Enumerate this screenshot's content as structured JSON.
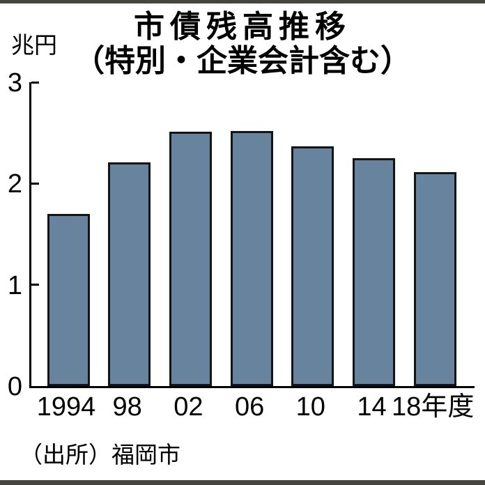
{
  "page": {
    "background_color": "#ffffff",
    "edge_bar_color": "#47453f"
  },
  "chart_data": {
    "type": "bar",
    "title": "市債残高推移（特別・企業会計含む）",
    "title_lines": [
      "市債残高推移",
      "（特別・企業会計含む）"
    ],
    "unit_label": "兆円",
    "categories": [
      "1994",
      "98",
      "02",
      "06",
      "10",
      "14",
      "18年度"
    ],
    "values": [
      1.7,
      2.21,
      2.51,
      2.52,
      2.37,
      2.25,
      2.11
    ],
    "ylim": [
      0,
      3
    ],
    "y_ticks": [
      0,
      1,
      2,
      3
    ],
    "xlabel": "",
    "ylabel": "兆円",
    "grid": false,
    "legend": false,
    "bar_color": "#68839d",
    "bar_border_color": "#141414",
    "axis_color": "#000000",
    "source": "（出所）福岡市"
  }
}
